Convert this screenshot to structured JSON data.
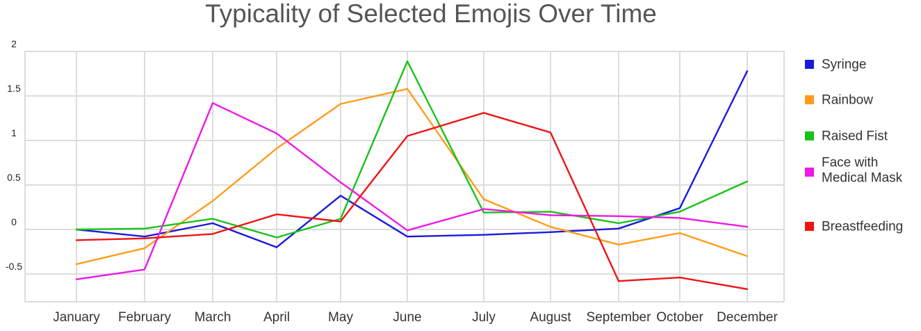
{
  "chart_data": {
    "type": "line",
    "title": "Typicality of Selected Emojis Over Time",
    "xlabel": "",
    "ylabel": "",
    "categories": [
      "January",
      "February",
      "March",
      "April",
      "May",
      "June",
      "July",
      "August",
      "September",
      "October",
      "December"
    ],
    "y_ticks": [
      "2",
      "1.5",
      "1",
      "0.5",
      "0",
      "-0.5"
    ],
    "ylim": [
      -0.8,
      2.05
    ],
    "grid": true,
    "legend_position": "right",
    "series": [
      {
        "name": "Syringe",
        "color": "#1a1adb",
        "values": [
          0.0,
          -0.08,
          0.07,
          -0.2,
          0.38,
          -0.08,
          -0.06,
          -0.03,
          0.01,
          0.24,
          1.78
        ]
      },
      {
        "name": "Rainbow",
        "color": "#ff9c1a",
        "values": [
          -0.39,
          -0.21,
          0.32,
          0.91,
          1.41,
          1.58,
          0.34,
          0.03,
          -0.17,
          -0.04,
          -0.3
        ]
      },
      {
        "name": "Raised Fist",
        "color": "#19c219",
        "values": [
          0.0,
          0.01,
          0.12,
          -0.09,
          0.12,
          1.89,
          0.19,
          0.2,
          0.07,
          0.2,
          0.54
        ]
      },
      {
        "name_lines": [
          "Face with",
          "Medical Mask"
        ],
        "color": "#ee19e6",
        "values": [
          -0.56,
          -0.45,
          1.42,
          1.08,
          0.53,
          -0.01,
          0.23,
          0.16,
          0.15,
          0.13,
          0.03
        ]
      },
      {
        "name": "Breastfeeding",
        "color": "#ee1414",
        "values": [
          -0.12,
          -0.1,
          -0.05,
          0.17,
          0.09,
          1.05,
          1.31,
          1.09,
          -0.58,
          -0.54,
          -0.67
        ]
      }
    ]
  }
}
